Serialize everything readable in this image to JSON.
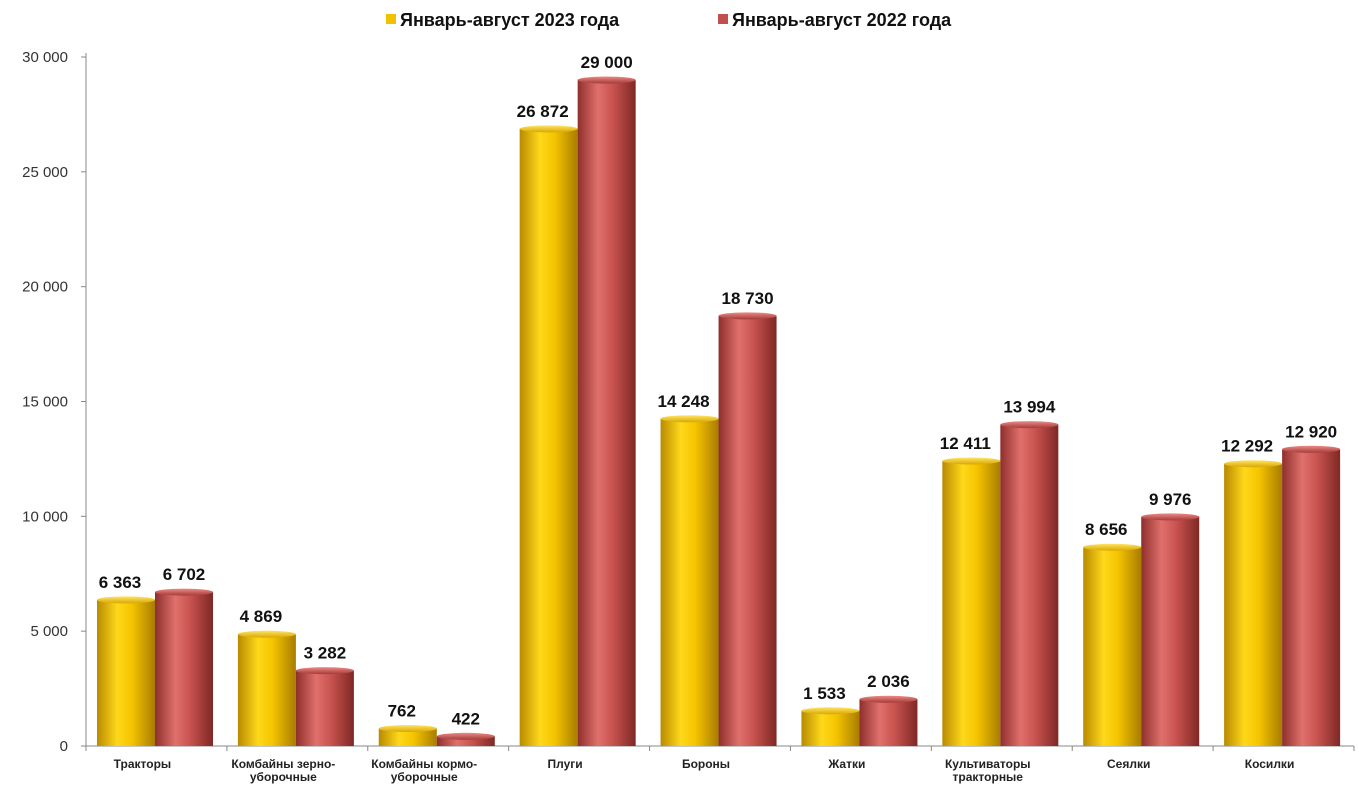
{
  "chart_data": {
    "type": "bar",
    "title": "",
    "xlabel": "",
    "ylabel": "",
    "ylim": [
      0,
      30000
    ],
    "yticks": [
      0,
      5000,
      10000,
      15000,
      20000,
      25000,
      30000
    ],
    "ytick_labels": [
      "0",
      "5 000",
      "10 000",
      "15 000",
      "20 000",
      "25 000",
      "30 000"
    ],
    "grid": false,
    "legend_position": "top-center",
    "categories": [
      [
        "Тракторы"
      ],
      [
        "Комбайны зерно-",
        "уборочные"
      ],
      [
        "Комбайны кормо-",
        "уборочные"
      ],
      [
        "Плуги"
      ],
      [
        "Бороны"
      ],
      [
        "Жатки"
      ],
      [
        "Культиваторы",
        "тракторные"
      ],
      [
        "Сеялки"
      ],
      [
        "Косилки"
      ]
    ],
    "series": [
      {
        "name": "Январь-август  2023 года",
        "color": "#f2c200",
        "values": [
          6363,
          4869,
          762,
          26872,
          14248,
          1533,
          12411,
          8656,
          12292
        ],
        "labels": [
          "6 363",
          "4 869",
          "762",
          "26 872",
          "14 248",
          "1 533",
          "12 411",
          "8 656",
          "12 292"
        ]
      },
      {
        "name": "Январь-август  2022 года",
        "color": "#c0504d",
        "values": [
          6702,
          3282,
          422,
          29000,
          18730,
          2036,
          13994,
          9976,
          12920
        ],
        "labels": [
          "6 702",
          "3 282",
          "422",
          "29 000",
          "18 730",
          "2 036",
          "13 994",
          "9 976",
          "12 920"
        ]
      }
    ]
  }
}
